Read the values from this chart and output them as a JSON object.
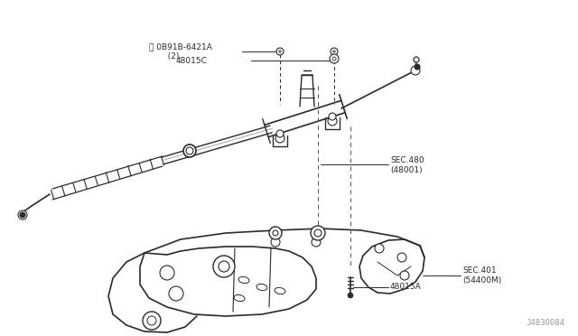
{
  "background_color": "#ffffff",
  "diagram_color": "#2a2a2a",
  "watermark": "J4830084",
  "figsize": [
    6.4,
    3.72
  ],
  "dpi": 100,
  "labels": {
    "bolt_top": "Ⓝ 0B91B-6421A",
    "bolt_top2": "  （2）",
    "mount_bracket": "48015C",
    "steering_gear_line1": "SEC.480",
    "steering_gear_line2": "(48001)",
    "subframe_line1": "SEC.401",
    "subframe_line2": "(54400M)",
    "bolt_lower": "48015A"
  }
}
